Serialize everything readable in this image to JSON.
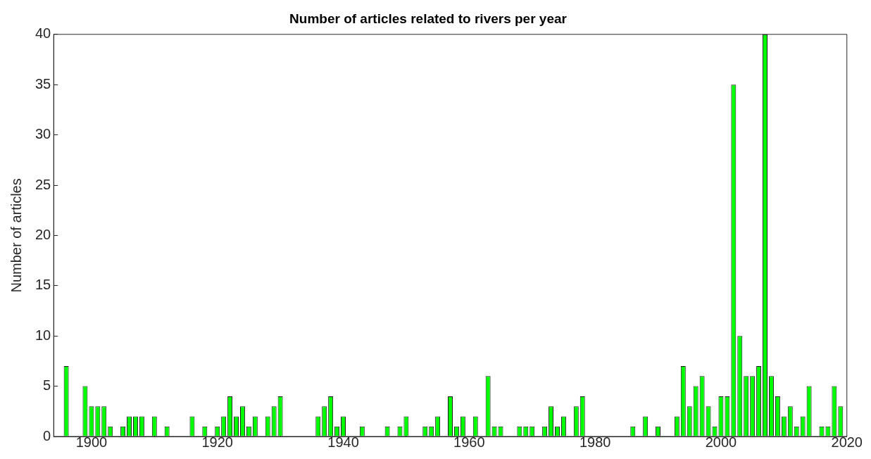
{
  "chart_data": {
    "type": "bar",
    "title": "Number of articles related to rivers per year",
    "ylabel": "Number of articles",
    "x": [
      1896,
      1899,
      1900,
      1901,
      1902,
      1903,
      1905,
      1906,
      1907,
      1908,
      1910,
      1912,
      1916,
      1918,
      1920,
      1921,
      1922,
      1923,
      1924,
      1925,
      1926,
      1928,
      1929,
      1930,
      1936,
      1937,
      1938,
      1939,
      1940,
      1943,
      1947,
      1949,
      1950,
      1953,
      1954,
      1955,
      1957,
      1958,
      1959,
      1961,
      1963,
      1964,
      1965,
      1968,
      1969,
      1970,
      1972,
      1973,
      1974,
      1975,
      1977,
      1978,
      1986,
      1988,
      1990,
      1993,
      1994,
      1995,
      1996,
      1997,
      1998,
      1999,
      2000,
      2001,
      2002,
      2003,
      2004,
      2005,
      2006,
      2007,
      2008,
      2009,
      2010,
      2011,
      2012,
      2013,
      2014,
      2016,
      2017,
      2018,
      2019
    ],
    "values": [
      7,
      5,
      3,
      3,
      3,
      1,
      1,
      2,
      2,
      2,
      2,
      1,
      2,
      1,
      1,
      2,
      4,
      2,
      3,
      1,
      2,
      2,
      3,
      4,
      2,
      3,
      4,
      1,
      2,
      1,
      1,
      1,
      2,
      1,
      1,
      2,
      4,
      1,
      2,
      2,
      6,
      1,
      1,
      1,
      1,
      1,
      1,
      3,
      1,
      2,
      3,
      4,
      1,
      2,
      1,
      2,
      7,
      3,
      5,
      6,
      3,
      1,
      4,
      4,
      35,
      10,
      6,
      6,
      7,
      40,
      6,
      4,
      2,
      3,
      1,
      2,
      5,
      1,
      1,
      5,
      3
    ],
    "color": "#00ff00",
    "xlim": [
      1894,
      2020
    ],
    "xticks": [
      1900,
      1920,
      1940,
      1960,
      1980,
      2000,
      2020
    ],
    "ylim": [
      0,
      40
    ],
    "yticks": [
      0,
      5,
      10,
      15,
      20,
      25,
      30,
      35,
      40
    ],
    "grid": false,
    "legend": false
  }
}
